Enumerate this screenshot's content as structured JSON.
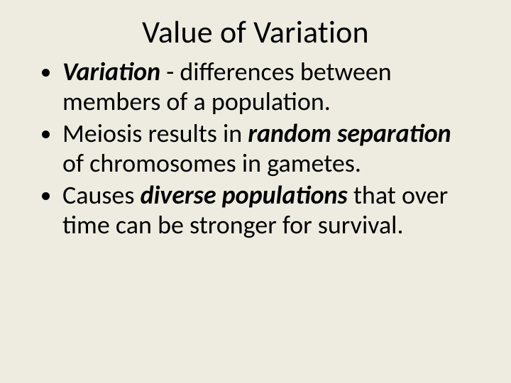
{
  "background_color": "#eeece1",
  "text_color": "#000000",
  "slide": {
    "title": "Value of Variation",
    "title_fontsize": 44,
    "body_fontsize": 36,
    "bullets": [
      {
        "lead_bi": "Variation",
        "rest": " - differences between members of a population."
      },
      {
        "pre": "Meiosis results in ",
        "bi": "random separation",
        "post": " of chromosomes in gametes."
      },
      {
        "pre": "Causes ",
        "bi": "diverse populations",
        "post": " that over time can be stronger for survival."
      }
    ]
  }
}
